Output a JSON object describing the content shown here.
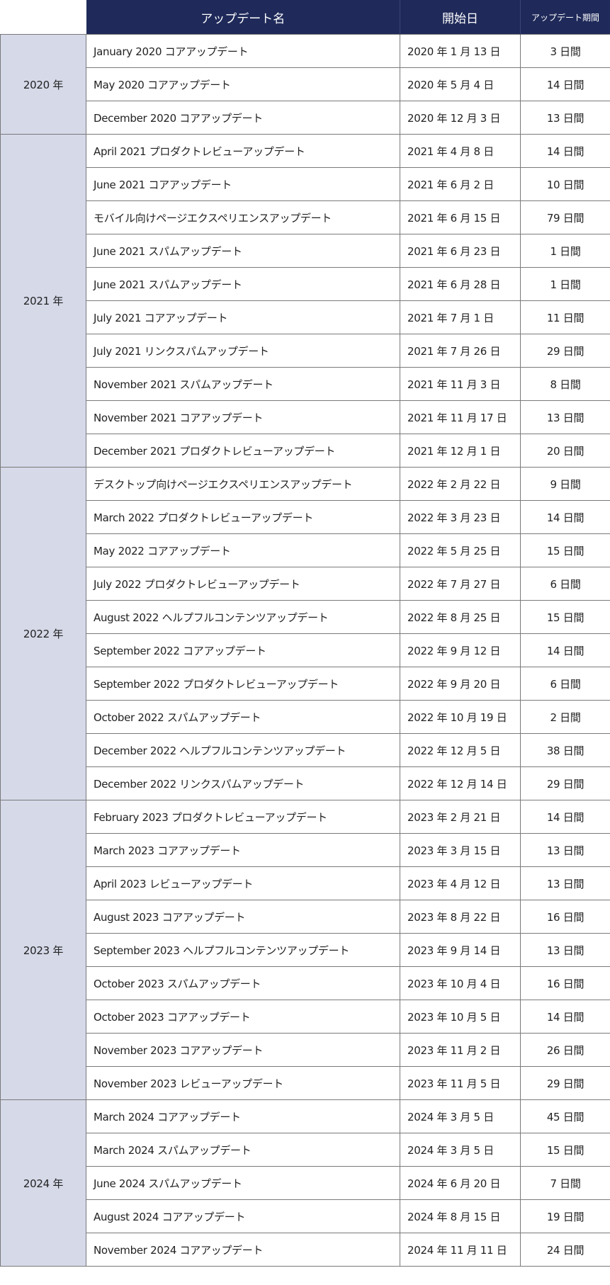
{
  "header": {
    "name": "アップデート名",
    "start": "開始日",
    "duration": "アップデート期間"
  },
  "colors": {
    "header_bg": "#1f2a5a",
    "year_bg": "#d5d9e8",
    "border": "#7a7a7a"
  },
  "groups": [
    {
      "year": "2020 年",
      "rows": [
        {
          "name": "January 2020 コアアップデート",
          "start": "2020 年 1 月 13 日",
          "duration": "3 日間"
        },
        {
          "name": "May 2020 コアアップデート",
          "start": "2020 年 5 月 4 日",
          "duration": "14 日間"
        },
        {
          "name": "December 2020 コアアップデート",
          "start": "2020 年 12 月 3 日",
          "duration": "13 日間"
        }
      ]
    },
    {
      "year": "2021 年",
      "rows": [
        {
          "name": "April 2021 プロダクトレビューアップデート",
          "start": "2021 年 4 月 8 日",
          "duration": "14 日間"
        },
        {
          "name": "June 2021 コアアップデート",
          "start": "2021 年 6 月 2 日",
          "duration": "10 日間"
        },
        {
          "name": "モバイル向けページエクスペリエンスアップデート",
          "start": "2021 年 6 月 15 日",
          "duration": "79 日間"
        },
        {
          "name": "June 2021 スパムアップデート",
          "start": "2021 年 6 月 23 日",
          "duration": "1 日間"
        },
        {
          "name": "June 2021 スパムアップデート",
          "start": "2021 年 6 月 28 日",
          "duration": "1 日間"
        },
        {
          "name": "July 2021 コアアップデート",
          "start": "2021 年 7 月 1 日",
          "duration": "11 日間"
        },
        {
          "name": "July 2021 リンクスパムアップデート",
          "start": "2021 年 7 月 26 日",
          "duration": "29 日間"
        },
        {
          "name": "November 2021 スパムアップデート",
          "start": "2021 年 11 月 3 日",
          "duration": "8 日間"
        },
        {
          "name": "November 2021 コアアップデート",
          "start": "2021 年 11 月 17 日",
          "duration": "13 日間"
        },
        {
          "name": "December 2021 プロダクトレビューアップデート",
          "start": "2021 年 12 月 1 日",
          "duration": "20 日間"
        }
      ]
    },
    {
      "year": "2022 年",
      "rows": [
        {
          "name": "デスクトップ向けページエクスペリエンスアップデート",
          "start": "2022 年 2 月 22 日",
          "duration": "9 日間"
        },
        {
          "name": "March 2022 プロダクトレビューアップデート",
          "start": "2022 年 3 月 23 日",
          "duration": "14 日間"
        },
        {
          "name": "May 2022 コアアップデート",
          "start": "2022 年 5 月 25 日",
          "duration": "15 日間"
        },
        {
          "name": "July 2022 プロダクトレビューアップデート",
          "start": "2022 年 7 月 27 日",
          "duration": "6 日間"
        },
        {
          "name": "August 2022 ヘルプフルコンテンツアップデート",
          "start": "2022 年 8 月 25 日",
          "duration": "15 日間"
        },
        {
          "name": "September 2022 コアアップデート",
          "start": "2022 年 9 月 12 日",
          "duration": "14 日間"
        },
        {
          "name": "September 2022 プロダクトレビューアップデート",
          "start": "2022 年 9 月 20 日",
          "duration": "6 日間"
        },
        {
          "name": "October 2022 スパムアップデート",
          "start": "2022 年 10 月 19 日",
          "duration": "2 日間"
        },
        {
          "name": "December 2022 ヘルプフルコンテンツアップデート",
          "start": "2022 年 12 月 5 日",
          "duration": "38 日間"
        },
        {
          "name": "December 2022 リンクスパムアップデート",
          "start": "2022 年 12 月 14 日",
          "duration": "29 日間"
        }
      ]
    },
    {
      "year": "2023 年",
      "rows": [
        {
          "name": "February 2023 プロダクトレビューアップデート",
          "start": "2023 年 2 月 21 日",
          "duration": "14 日間"
        },
        {
          "name": "March 2023 コアアップデート",
          "start": "2023 年 3 月 15 日",
          "duration": "13 日間"
        },
        {
          "name": "April 2023 レビューアップデート",
          "start": "2023 年 4 月 12 日",
          "duration": "13 日間"
        },
        {
          "name": "August 2023 コアアップデート",
          "start": "2023 年 8 月 22 日",
          "duration": "16 日間"
        },
        {
          "name": "September 2023 ヘルプフルコンテンツアップデート",
          "start": "2023 年 9 月 14 日",
          "duration": "13 日間"
        },
        {
          "name": "October 2023 スパムアップデート",
          "start": "2023 年 10 月 4 日",
          "duration": "16 日間"
        },
        {
          "name": "October 2023 コアアップデート",
          "start": "2023 年 10 月 5 日",
          "duration": "14 日間"
        },
        {
          "name": "November 2023 コアアップデート",
          "start": "2023 年 11 月 2 日",
          "duration": "26 日間"
        },
        {
          "name": "November 2023 レビューアップデート",
          "start": "2023 年 11 月 5 日",
          "duration": "29 日間"
        }
      ]
    },
    {
      "year": "2024 年",
      "rows": [
        {
          "name": "March 2024 コアアップデート",
          "start": "2024 年 3 月 5 日",
          "duration": "45 日間"
        },
        {
          "name": "March 2024 スパムアップデート",
          "start": "2024 年 3 月 5 日",
          "duration": "15 日間"
        },
        {
          "name": "June 2024 スパムアップデート",
          "start": "2024 年 6 月 20 日",
          "duration": "7 日間"
        },
        {
          "name": "August 2024 コアアップデート",
          "start": "2024 年 8 月 15 日",
          "duration": "19 日間"
        },
        {
          "name": "November 2024 コアアップデート",
          "start": "2024 年 11 月 11 日",
          "duration": "24 日間"
        }
      ]
    }
  ]
}
